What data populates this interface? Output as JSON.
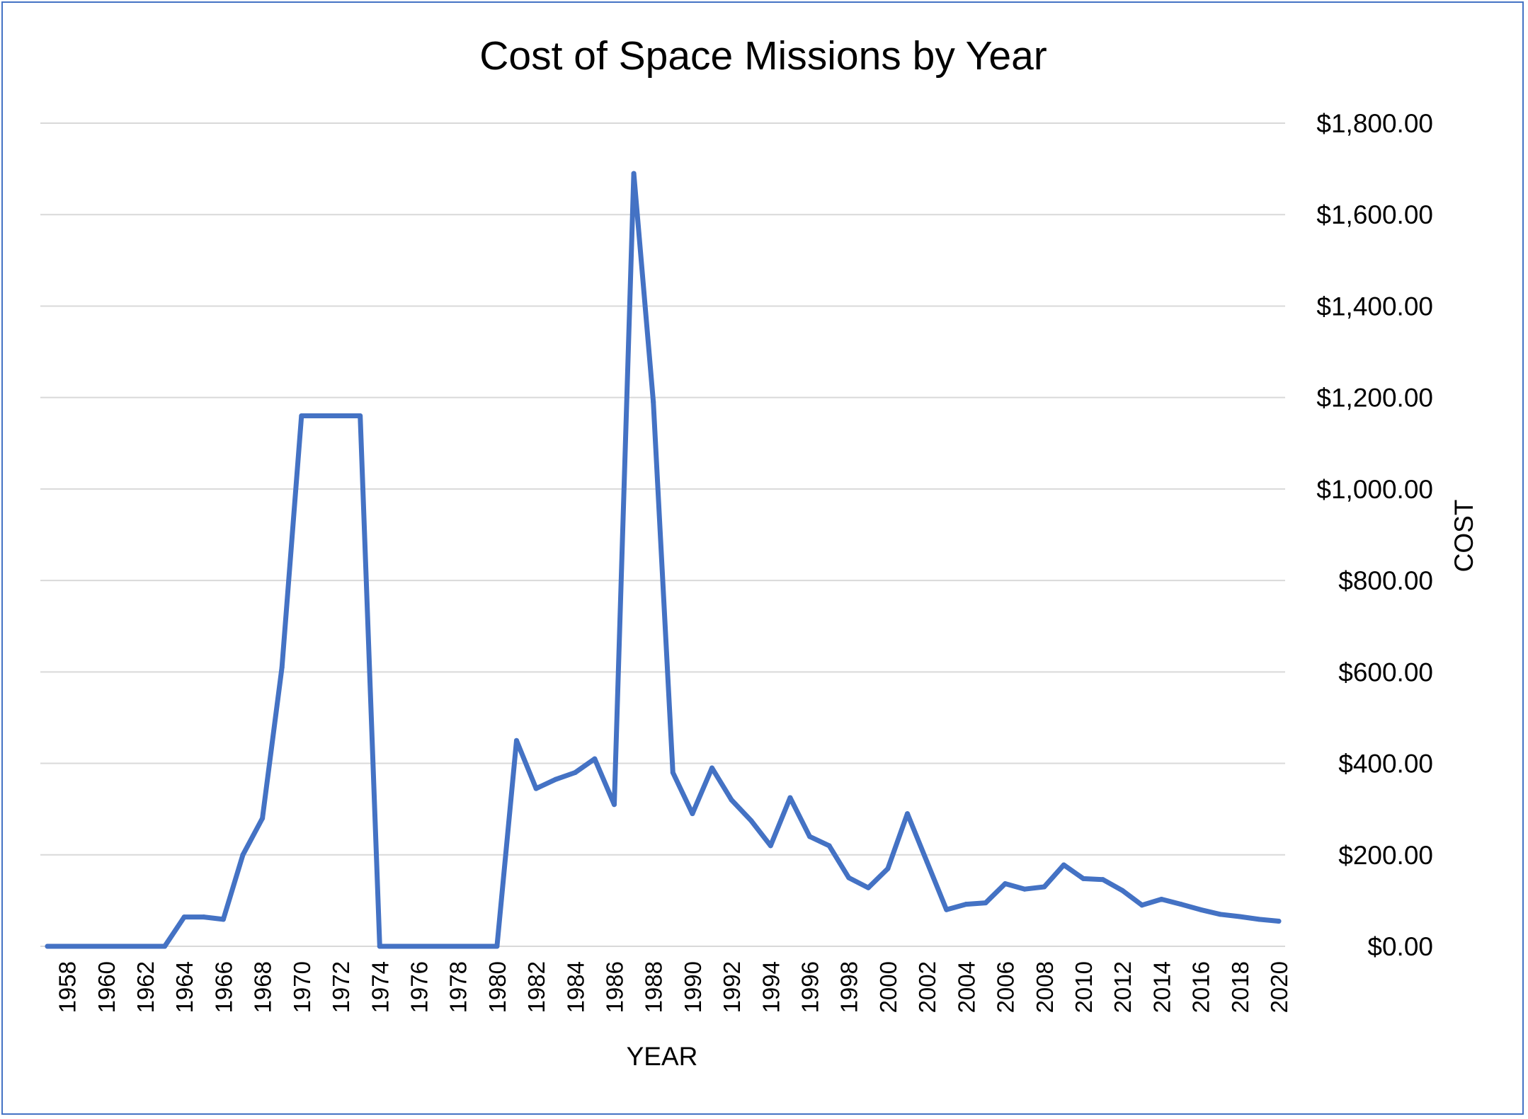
{
  "chart_data": {
    "type": "line",
    "title": "Cost of Space Missions by Year",
    "xlabel": "YEAR",
    "ylabel": "COST",
    "ylim": [
      0,
      1800
    ],
    "y_ticks": [
      "$0.00",
      "$200.00",
      "$400.00",
      "$600.00",
      "$800.00",
      "$1,000.00",
      "$1,200.00",
      "$1,400.00",
      "$1,600.00",
      "$1,800.00"
    ],
    "x_ticks": [
      "1958",
      "1960",
      "1962",
      "1964",
      "1966",
      "1968",
      "1970",
      "1972",
      "1974",
      "1976",
      "1978",
      "1980",
      "1982",
      "1984",
      "1986",
      "1988",
      "1990",
      "1992",
      "1994",
      "1996",
      "1998",
      "2000",
      "2002",
      "2004",
      "2006",
      "2008",
      "2010",
      "2012",
      "2014",
      "2016",
      "2018",
      "2020"
    ],
    "grid": true,
    "y_axis_position": "right",
    "line_color": "#4472c4",
    "x": [
      1957,
      1958,
      1959,
      1960,
      1961,
      1962,
      1963,
      1964,
      1965,
      1966,
      1967,
      1968,
      1969,
      1970,
      1971,
      1972,
      1973,
      1974,
      1975,
      1976,
      1977,
      1978,
      1979,
      1980,
      1981,
      1982,
      1983,
      1984,
      1985,
      1986,
      1987,
      1988,
      1989,
      1990,
      1991,
      1992,
      1993,
      1994,
      1995,
      1996,
      1997,
      1998,
      1999,
      2000,
      2001,
      2002,
      2003,
      2004,
      2005,
      2006,
      2007,
      2008,
      2009,
      2010,
      2011,
      2012,
      2013,
      2014,
      2015,
      2016,
      2017,
      2018,
      2019,
      2020
    ],
    "series": [
      {
        "values": [
          0,
          0,
          0,
          0,
          0,
          0,
          0,
          64,
          64,
          59,
          200,
          280,
          610,
          1160,
          1160,
          1160,
          1160,
          0,
          0,
          0,
          0,
          0,
          0,
          0,
          450,
          345,
          365,
          380,
          410,
          310,
          1690,
          1190,
          380,
          290,
          390,
          320,
          275,
          220,
          325,
          240,
          220,
          150,
          128,
          170,
          290,
          185,
          80,
          92,
          95,
          137,
          125,
          130,
          178,
          148,
          146,
          122,
          90,
          103,
          92,
          80,
          70,
          65,
          59,
          55
        ]
      }
    ]
  }
}
